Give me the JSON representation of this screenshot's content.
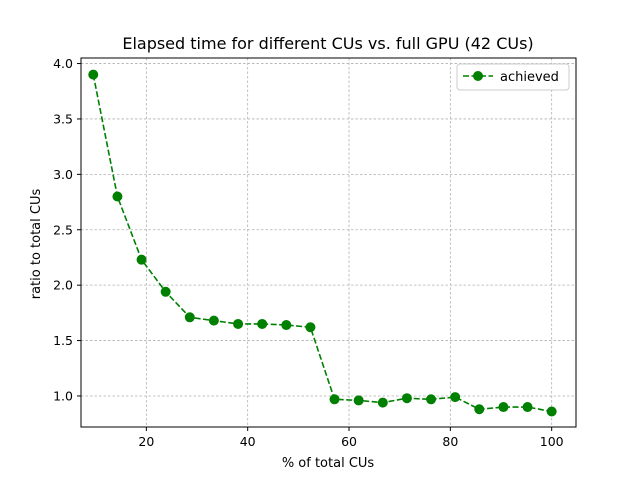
{
  "chart_data": {
    "type": "line",
    "title": "Elapsed time for different CUs vs. full GPU (42 CUs)",
    "xlabel": "% of total CUs",
    "ylabel": "ratio to total CUs",
    "xlim": [
      7.1,
      104.8
    ],
    "ylim": [
      0.72,
      4.05
    ],
    "xticks": [
      20,
      40,
      60,
      80,
      100
    ],
    "yticks": [
      1.0,
      1.5,
      2.0,
      2.5,
      3.0,
      3.5,
      4.0
    ],
    "xtick_labels": [
      "20",
      "40",
      "60",
      "80",
      "100"
    ],
    "ytick_labels": [
      "1.0",
      "1.5",
      "2.0",
      "2.5",
      "3.0",
      "3.5",
      "4.0"
    ],
    "grid": true,
    "legend_position": "top-right",
    "series": [
      {
        "name": "achieved",
        "color": "#008000",
        "line_style": "dashed",
        "marker": "circle",
        "x": [
          9.52,
          14.29,
          19.05,
          23.81,
          28.57,
          33.33,
          38.1,
          42.86,
          47.62,
          52.38,
          57.14,
          61.9,
          66.67,
          71.43,
          76.19,
          80.95,
          85.71,
          90.48,
          95.24,
          100.0
        ],
        "y": [
          3.9,
          2.8,
          2.23,
          1.94,
          1.71,
          1.68,
          1.65,
          1.65,
          1.64,
          1.62,
          0.97,
          0.96,
          0.94,
          0.98,
          0.97,
          0.99,
          0.88,
          0.9,
          0.9,
          0.86
        ]
      }
    ]
  }
}
